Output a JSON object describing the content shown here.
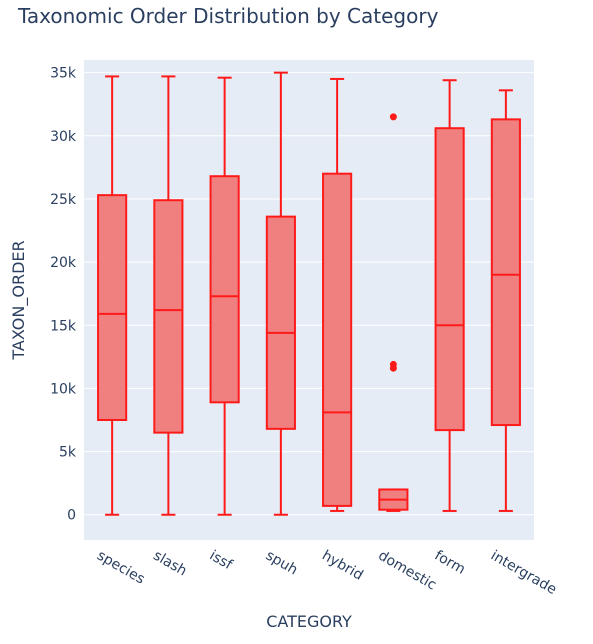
{
  "chart_data": {
    "type": "box",
    "title": "Taxonomic Order Distribution by Category",
    "xlabel": "CATEGORY",
    "ylabel": "TAXON_ORDER",
    "ylim": [
      -2000,
      36000
    ],
    "yticks": [
      0,
      5000,
      10000,
      15000,
      20000,
      25000,
      30000,
      35000
    ],
    "ytick_labels": [
      "0",
      "5k",
      "10k",
      "15k",
      "20k",
      "25k",
      "30k",
      "35k"
    ],
    "grid": true,
    "colors": {
      "fill": "#f08080",
      "line": "#ff1a1a",
      "plot_bg": "#e5ecf6",
      "text": "#2a3f5f"
    },
    "categories": [
      "species",
      "slash",
      "issf",
      "spuh",
      "hybrid",
      "domestic",
      "form",
      "intergrade"
    ],
    "boxes": [
      {
        "category": "species",
        "min": 0,
        "q1": 7500,
        "median": 15900,
        "q3": 25300,
        "max": 34700,
        "outliers": []
      },
      {
        "category": "slash",
        "min": 0,
        "q1": 6500,
        "median": 16200,
        "q3": 24900,
        "max": 34700,
        "outliers": []
      },
      {
        "category": "issf",
        "min": 0,
        "q1": 8900,
        "median": 17300,
        "q3": 26800,
        "max": 34600,
        "outliers": []
      },
      {
        "category": "spuh",
        "min": 0,
        "q1": 6800,
        "median": 14400,
        "q3": 23600,
        "max": 35000,
        "outliers": []
      },
      {
        "category": "hybrid",
        "min": 300,
        "q1": 700,
        "median": 8100,
        "q3": 27000,
        "max": 34500,
        "outliers": []
      },
      {
        "category": "domestic",
        "min": 300,
        "q1": 400,
        "median": 1200,
        "q3": 2000,
        "max": 2000,
        "outliers": [
          11600,
          11900,
          31500
        ]
      },
      {
        "category": "form",
        "min": 300,
        "q1": 6700,
        "median": 15000,
        "q3": 30600,
        "max": 34400,
        "outliers": []
      },
      {
        "category": "intergrade",
        "min": 300,
        "q1": 7100,
        "median": 19000,
        "q3": 31300,
        "max": 33600,
        "outliers": []
      }
    ]
  }
}
